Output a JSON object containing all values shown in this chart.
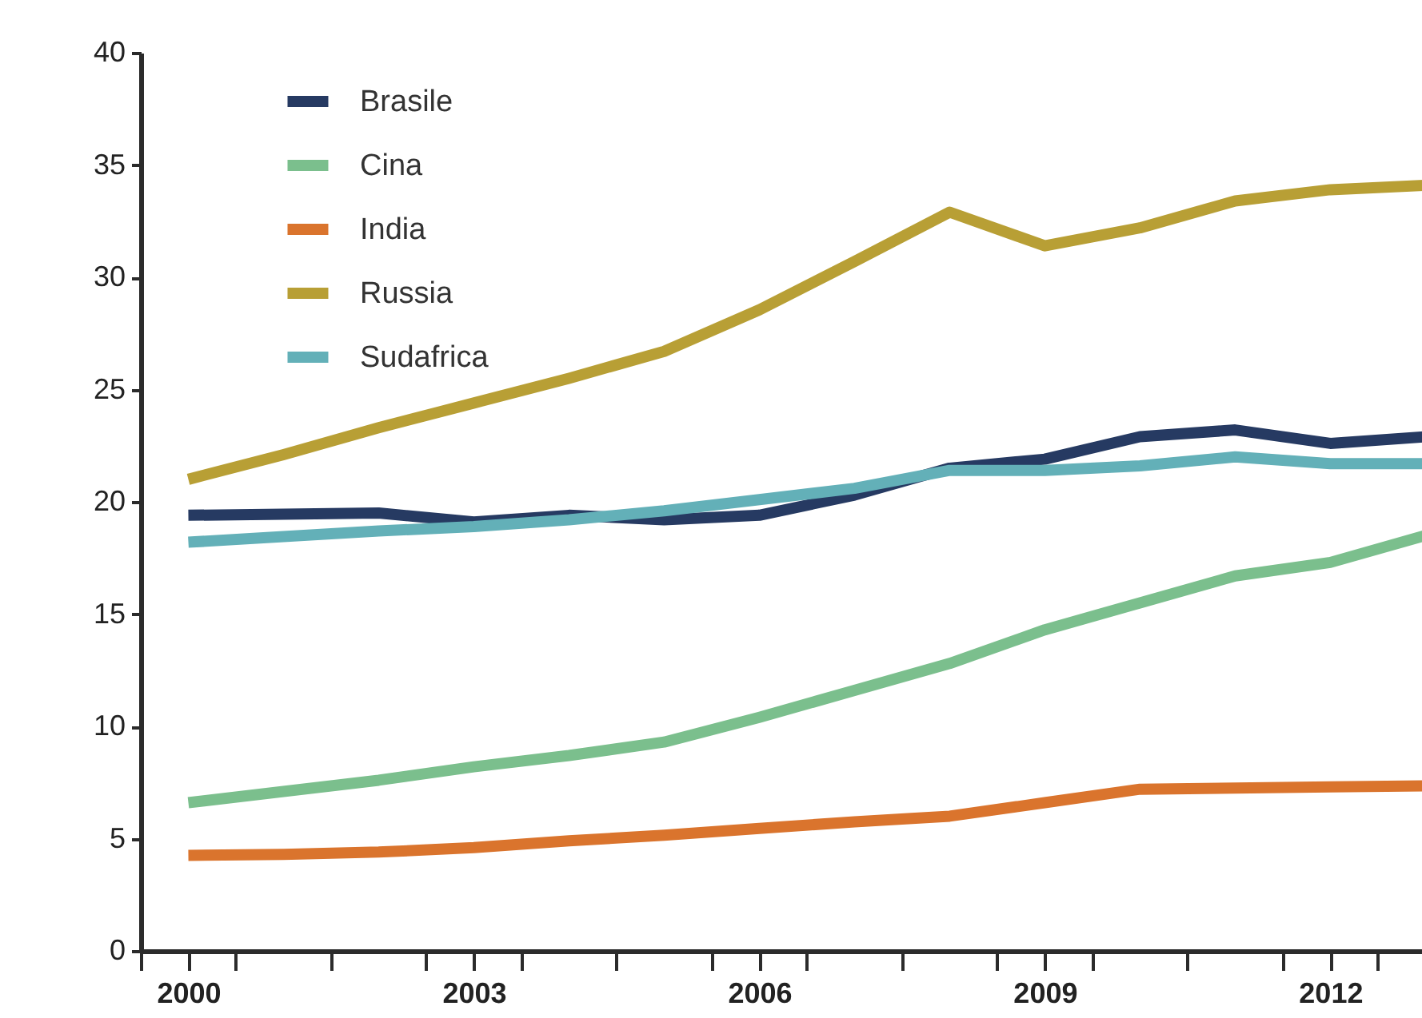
{
  "chart_data": {
    "type": "line",
    "x": [
      2000,
      2001,
      2002,
      2003,
      2004,
      2005,
      2006,
      2007,
      2008,
      2009,
      2010,
      2011,
      2012,
      2013
    ],
    "series": [
      {
        "name": "Brasile",
        "color": "#263a62",
        "values": [
          19.4,
          19.45,
          19.5,
          19.1,
          19.4,
          19.2,
          19.4,
          20.3,
          21.5,
          21.9,
          22.9,
          23.2,
          22.6,
          22.9
        ]
      },
      {
        "name": "Cina",
        "color": "#7bbf8d",
        "values": [
          6.6,
          7.1,
          7.6,
          8.2,
          8.7,
          9.3,
          10.4,
          11.6,
          12.8,
          14.3,
          15.5,
          16.7,
          17.3,
          18.5
        ]
      },
      {
        "name": "India",
        "color": "#da742d",
        "values": [
          4.25,
          4.3,
          4.4,
          4.6,
          4.9,
          5.15,
          5.45,
          5.75,
          6.0,
          6.6,
          7.2,
          7.25,
          7.3,
          7.35
        ]
      },
      {
        "name": "Russia",
        "color": "#b89f35",
        "values": [
          21.0,
          22.1,
          23.3,
          24.4,
          25.5,
          26.7,
          28.55,
          30.7,
          32.9,
          31.4,
          32.2,
          33.4,
          33.9,
          34.1
        ]
      },
      {
        "name": "Sudafrica",
        "color": "#63b0b8",
        "values": [
          18.2,
          18.45,
          18.7,
          18.9,
          19.2,
          19.6,
          20.1,
          20.6,
          21.4,
          21.4,
          21.6,
          22.0,
          21.7,
          21.7
        ]
      }
    ],
    "xlim": [
      1999.5,
      2013.35
    ],
    "xticks": [
      {
        "value": 1999.5,
        "label": null
      },
      2000,
      {
        "value": 2000.5,
        "label": null
      },
      {
        "value": 2001.5,
        "label": null
      },
      {
        "value": 2002.5,
        "label": null
      },
      2003,
      {
        "value": 2003.5,
        "label": null
      },
      {
        "value": 2004.5,
        "label": null
      },
      {
        "value": 2005.5,
        "label": null
      },
      2006,
      {
        "value": 2006.5,
        "label": null
      },
      {
        "value": 2007.5,
        "label": null
      },
      {
        "value": 2008.5,
        "label": null
      },
      2009,
      {
        "value": 2009.5,
        "label": null
      },
      {
        "value": 2010.5,
        "label": null
      },
      {
        "value": 2011.5,
        "label": null
      },
      2012,
      {
        "value": 2012.5,
        "label": null
      }
    ],
    "ylim": [
      0,
      40
    ],
    "yticks": [
      0,
      5,
      10,
      15,
      20,
      25,
      30,
      35,
      40
    ],
    "grid": false,
    "legend": "top left",
    "marker": "none",
    "line_style": "solid"
  }
}
